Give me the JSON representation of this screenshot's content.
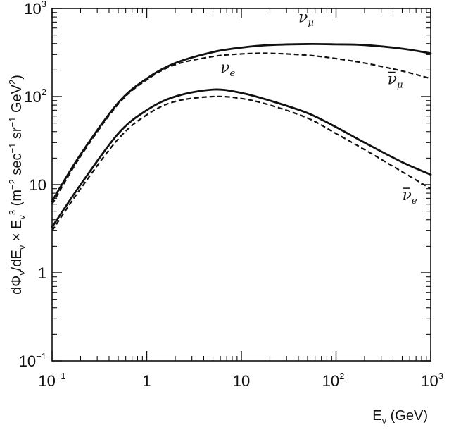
{
  "chart_data": {
    "type": "line",
    "x_scale": "log",
    "y_scale": "log",
    "xlim": [
      0.1,
      1000
    ],
    "ylim": [
      0.1,
      1000
    ],
    "grid": false,
    "xlabel": "Eν (GeV)",
    "ylabel": "dΦν/dEν × Eν³ (m⁻² sec⁻¹ sr⁻¹ GeV²)",
    "x_ticks": [
      {
        "value": 0.1,
        "base": "10",
        "exp": "-1"
      },
      {
        "value": 1,
        "base": "1",
        "exp": ""
      },
      {
        "value": 10,
        "base": "10",
        "exp": ""
      },
      {
        "value": 100,
        "base": "10",
        "exp": "2"
      },
      {
        "value": 1000,
        "base": "10",
        "exp": "3"
      }
    ],
    "y_ticks": [
      {
        "value": 0.1,
        "base": "10",
        "exp": "-1"
      },
      {
        "value": 1,
        "base": "1",
        "exp": ""
      },
      {
        "value": 10,
        "base": "10",
        "exp": ""
      },
      {
        "value": 100,
        "base": "10",
        "exp": "2"
      },
      {
        "value": 1000,
        "base": "10",
        "exp": "3"
      }
    ],
    "series": [
      {
        "name": "νμ",
        "style": "solid",
        "label": {
          "base": "ν",
          "sub": "μ",
          "bar": false
        },
        "x": [
          0.1,
          0.2,
          0.5,
          1,
          2,
          5,
          10,
          20,
          50,
          100,
          200,
          500,
          1000
        ],
        "y": [
          6.5,
          22,
          85,
          160,
          240,
          320,
          360,
          385,
          395,
          392,
          385,
          350,
          310
        ]
      },
      {
        "name": "ν̄μ",
        "style": "dashed",
        "label": {
          "base": "ν",
          "sub": "μ",
          "bar": true
        },
        "x": [
          0.1,
          0.2,
          0.5,
          1,
          2,
          5,
          10,
          20,
          50,
          100,
          200,
          500,
          1000
        ],
        "y": [
          6.0,
          21,
          82,
          155,
          230,
          285,
          305,
          310,
          295,
          270,
          240,
          195,
          160
        ]
      },
      {
        "name": "νe",
        "style": "solid",
        "label": {
          "base": "ν",
          "sub": "e",
          "bar": false
        },
        "x": [
          0.1,
          0.2,
          0.5,
          1,
          2,
          5,
          10,
          20,
          50,
          100,
          200,
          500,
          1000
        ],
        "y": [
          3.3,
          10,
          38,
          70,
          100,
          120,
          110,
          90,
          65,
          45,
          30,
          18,
          13
        ]
      },
      {
        "name": "ν̄e",
        "style": "dashed",
        "label": {
          "base": "ν",
          "sub": "e",
          "bar": true
        },
        "x": [
          0.1,
          0.2,
          0.5,
          1,
          2,
          5,
          10,
          20,
          50,
          100,
          200,
          500,
          1000
        ],
        "y": [
          3.0,
          9.0,
          33,
          62,
          88,
          100,
          95,
          80,
          57,
          38,
          25,
          14,
          9
        ]
      }
    ]
  }
}
